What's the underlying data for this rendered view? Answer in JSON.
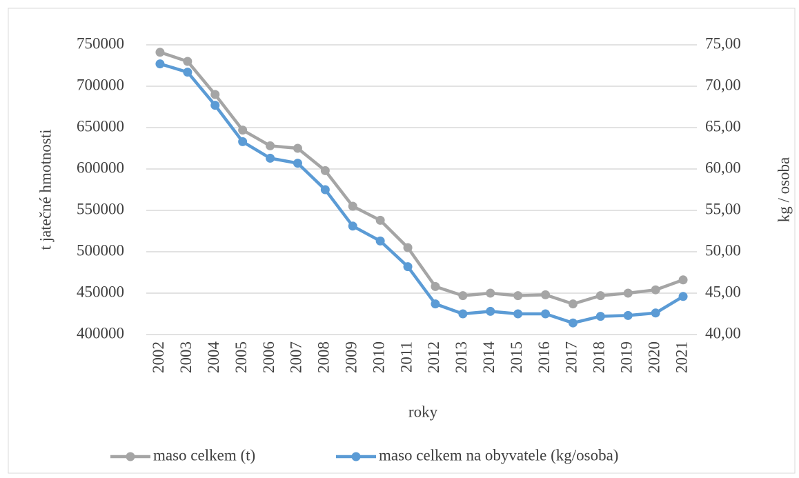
{
  "chart_data": {
    "type": "line",
    "x_label": "roky",
    "y_label": "t jatečné hmotnosti",
    "y2_label": "kg / osoba",
    "categories": [
      "2002",
      "2003",
      "2004",
      "2005",
      "2006",
      "2007",
      "2008",
      "2009",
      "2010",
      "2011",
      "2012",
      "2013",
      "2014",
      "2015",
      "2016",
      "2017",
      "2018",
      "2019",
      "2020",
      "2021"
    ],
    "series": [
      {
        "name": "maso celkem (t)",
        "color": "#a5a5a5",
        "values": [
          741000,
          730000,
          690000,
          647000,
          628000,
          625000,
          598000,
          555000,
          538000,
          505000,
          458000,
          447000,
          450000,
          447000,
          448000,
          437000,
          447000,
          450000,
          454000,
          466000
        ]
      },
      {
        "name": "maso celkem na obyvatele (kg/osoba)",
        "color": "#5b9bd5",
        "axis": "y2",
        "values": [
          72.7,
          71.7,
          67.7,
          63.3,
          61.3,
          60.7,
          57.5,
          53.1,
          51.3,
          48.2,
          43.7,
          42.5,
          42.8,
          42.5,
          42.5,
          41.4,
          42.2,
          42.3,
          42.6,
          44.6
        ]
      }
    ],
    "ylim": [
      400000,
      750000
    ],
    "yticks": [
      400000,
      450000,
      500000,
      550000,
      600000,
      650000,
      700000,
      750000
    ],
    "y2lim": [
      40,
      75
    ],
    "y2ticks": [
      {
        "value": 40,
        "label": "40,00"
      },
      {
        "value": 45,
        "label": "45,00"
      },
      {
        "value": 50,
        "label": "50,00"
      },
      {
        "value": 55,
        "label": "55,00"
      },
      {
        "value": 60,
        "label": "60,00"
      },
      {
        "value": 65,
        "label": "65,00"
      },
      {
        "value": 70,
        "label": "70,00"
      },
      {
        "value": 75,
        "label": "75,00"
      }
    ],
    "grid": true,
    "legend": "bottom"
  }
}
